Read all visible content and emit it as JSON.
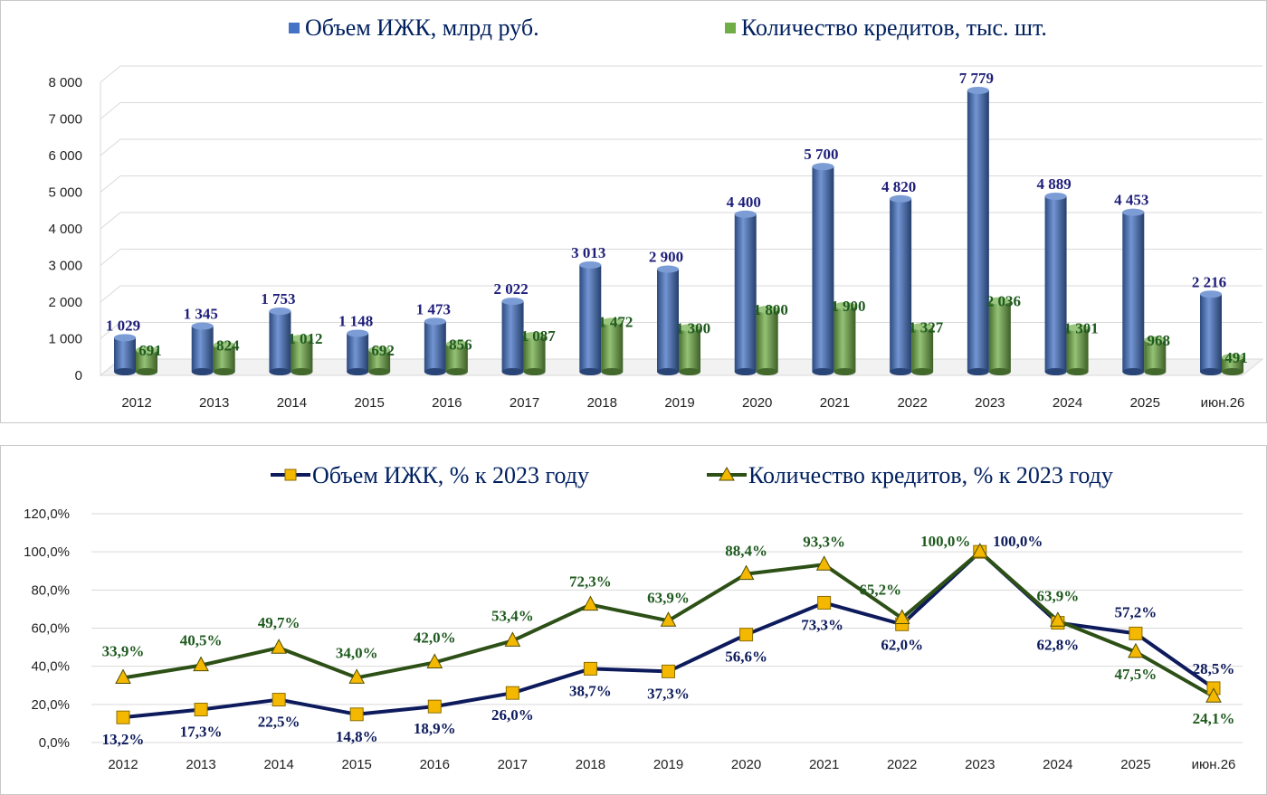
{
  "chart_data": [
    {
      "type": "bar",
      "categories": [
        "2012",
        "2013",
        "2014",
        "2015",
        "2016",
        "2017",
        "2018",
        "2019",
        "2020",
        "2021",
        "2022",
        "2023",
        "2024",
        "2025",
        "июн.26"
      ],
      "series": [
        {
          "name": "Объем ИЖК, млрд руб.",
          "color": "#4472c4",
          "values": [
            1029,
            1345,
            1753,
            1148,
            1473,
            2022,
            3013,
            2900,
            4400,
            5700,
            4820,
            7779,
            4889,
            4453,
            2216
          ],
          "labels": [
            "1 029",
            "1 345",
            "1 753",
            "1 148",
            "1 473",
            "2 022",
            "3 013",
            "2 900",
            "4 400",
            "5 700",
            "4 820",
            "7 779",
            "4 889",
            "4 453",
            "2 216"
          ]
        },
        {
          "name": "Количество кредитов, тыс. шт.",
          "color": "#70ad47",
          "values": [
            691,
            824,
            1012,
            692,
            856,
            1087,
            1472,
            1300,
            1800,
            1900,
            1327,
            2036,
            1301,
            968,
            491
          ],
          "labels": [
            "691",
            "824",
            "1 012",
            "692",
            "856",
            "1 087",
            "1 472",
            "1 300",
            "1 800",
            "1 900",
            "1 327",
            "2 036",
            "1 301",
            "968",
            "491"
          ]
        }
      ],
      "ylim": [
        0,
        8000
      ],
      "yticks": [
        "0",
        "1 000",
        "2 000",
        "3 000",
        "4 000",
        "5 000",
        "6 000",
        "7 000",
        "8 000"
      ],
      "grid": true,
      "legend": "top"
    },
    {
      "type": "line",
      "categories": [
        "2012",
        "2013",
        "2014",
        "2015",
        "2016",
        "2017",
        "2018",
        "2019",
        "2020",
        "2021",
        "2022",
        "2023",
        "2024",
        "2025",
        "июн.26"
      ],
      "series": [
        {
          "name": "Объем ИЖК, % к 2023 году",
          "color": "#0d1b5c",
          "marker": "square",
          "values": [
            13.2,
            17.3,
            22.5,
            14.8,
            18.9,
            26.0,
            38.7,
            37.3,
            56.6,
            73.3,
            62.0,
            100.0,
            62.8,
            57.2,
            28.5
          ],
          "labels": [
            "13,2%",
            "17,3%",
            "22,5%",
            "14,8%",
            "18,9%",
            "26,0%",
            "38,7%",
            "37,3%",
            "56,6%",
            "73,3%",
            "62,0%",
            "100,0%",
            "62,8%",
            "57,2%",
            "28,5%"
          ]
        },
        {
          "name": "Количество кредитов, % к 2023 году",
          "color": "#2d5016",
          "marker": "triangle",
          "values": [
            33.9,
            40.5,
            49.7,
            34.0,
            42.0,
            53.4,
            72.3,
            63.9,
            88.4,
            93.3,
            65.2,
            100.0,
            63.9,
            47.5,
            24.1
          ],
          "labels": [
            "33,9%",
            "40,5%",
            "49,7%",
            "34,0%",
            "42,0%",
            "53,4%",
            "72,3%",
            "63,9%",
            "88,4%",
            "93,3%",
            "65,2%",
            "100,0%",
            "63,9%",
            "47,5%",
            "24,1%"
          ]
        }
      ],
      "ylim": [
        0,
        120
      ],
      "yticks": [
        "0,0%",
        "20,0%",
        "40,0%",
        "60,0%",
        "80,0%",
        "100,0%",
        "120,0%"
      ],
      "grid": true,
      "legend": "top"
    }
  ]
}
